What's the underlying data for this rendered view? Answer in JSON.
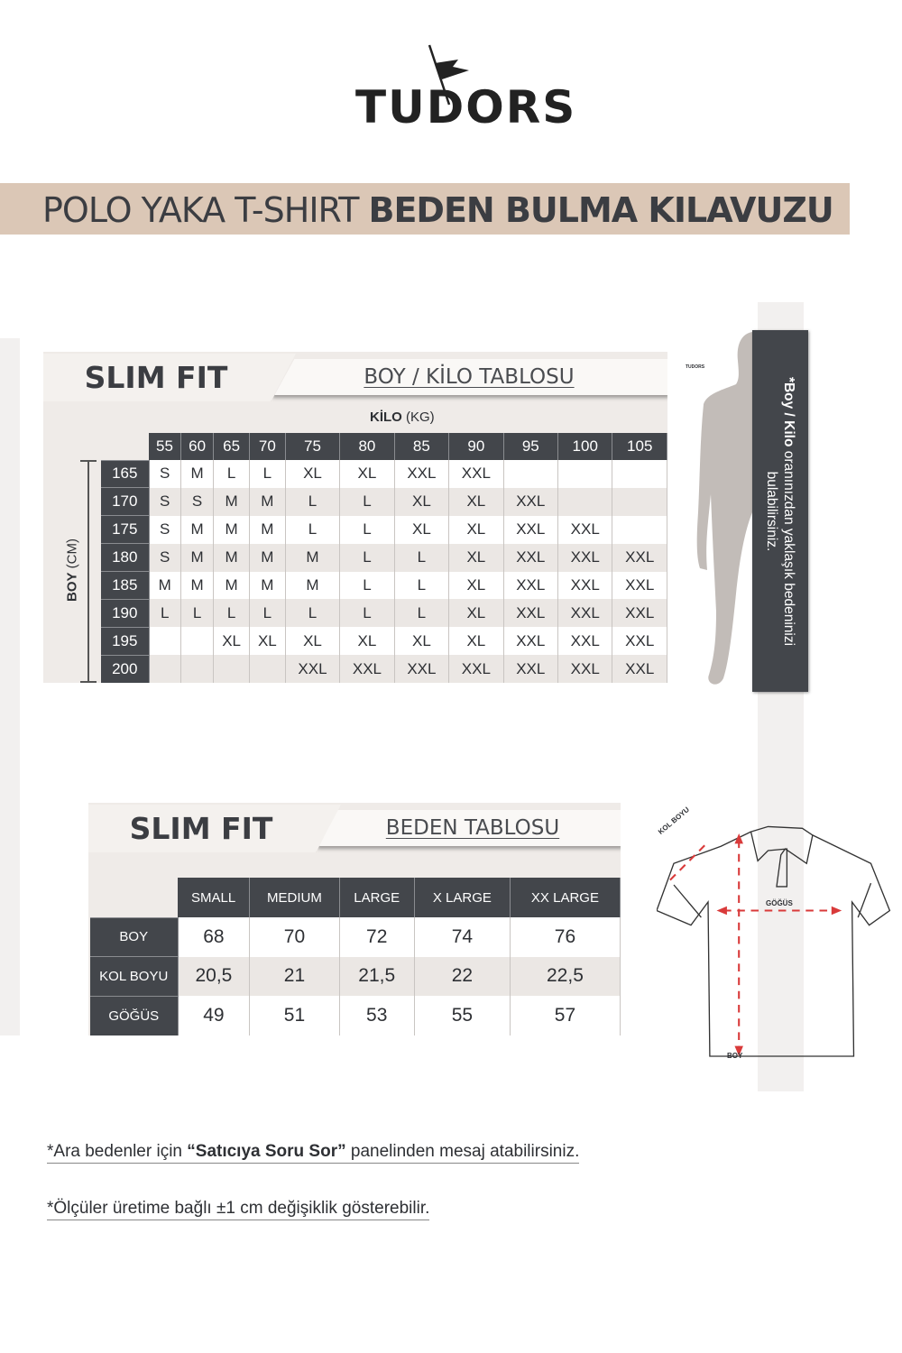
{
  "brand": {
    "logo_text": "TUDORS"
  },
  "banner": {
    "normal": "POLO YAKA T-SHIRT ",
    "bold": "BEDEN BULMA KILAVUZU"
  },
  "accent_colors": {
    "banner": "#dbc7b6",
    "dark": "#43464b",
    "panel": "#efebe8",
    "arrow": "#d93a3a"
  },
  "boy_kilo": {
    "tab_title": "SLIM FIT",
    "tab_subtitle": "BOY / KİLO TABLOSU",
    "kilo_label_bold": "KİLO",
    "kilo_label_unit": "(KG)",
    "boy_label_bold": "BOY",
    "boy_label_unit": "(CM)",
    "weights": [
      "55",
      "60",
      "65",
      "70",
      "75",
      "80",
      "85",
      "90",
      "95",
      "100",
      "105"
    ],
    "rows": [
      {
        "height": "165",
        "sizes": [
          "S",
          "M",
          "L",
          "L",
          "XL",
          "XL",
          "XXL",
          "XXL",
          "",
          "",
          ""
        ]
      },
      {
        "height": "170",
        "sizes": [
          "S",
          "S",
          "M",
          "M",
          "L",
          "L",
          "XL",
          "XL",
          "XXL",
          "",
          ""
        ]
      },
      {
        "height": "175",
        "sizes": [
          "S",
          "M",
          "M",
          "M",
          "L",
          "L",
          "XL",
          "XL",
          "XXL",
          "XXL",
          ""
        ]
      },
      {
        "height": "180",
        "sizes": [
          "S",
          "M",
          "M",
          "M",
          "M",
          "L",
          "L",
          "XL",
          "XXL",
          "XXL",
          "XXL"
        ]
      },
      {
        "height": "185",
        "sizes": [
          "M",
          "M",
          "M",
          "M",
          "M",
          "L",
          "L",
          "XL",
          "XXL",
          "XXL",
          "XXL"
        ]
      },
      {
        "height": "190",
        "sizes": [
          "L",
          "L",
          "L",
          "L",
          "L",
          "L",
          "L",
          "XL",
          "XXL",
          "XXL",
          "XXL"
        ]
      },
      {
        "height": "195",
        "sizes": [
          "",
          "",
          "XL",
          "XL",
          "XL",
          "XL",
          "XL",
          "XL",
          "XXL",
          "XXL",
          "XXL"
        ]
      },
      {
        "height": "200",
        "sizes": [
          "",
          "",
          "",
          "",
          "XXL",
          "XXL",
          "XXL",
          "XXL",
          "XXL",
          "XXL",
          "XXL"
        ]
      }
    ],
    "side_note_bold1": "*Boy / Kilo",
    "side_note_rest": " oranınızdan yaklaşık bedeninizi bulabilirsiniz.",
    "figure_logo": "TUDORS"
  },
  "beden": {
    "tab_title": "SLIM FIT",
    "tab_subtitle": "BEDEN TABLOSU",
    "sizes": [
      "SMALL",
      "MEDIUM",
      "LARGE",
      "X LARGE",
      "XX LARGE"
    ],
    "rows": [
      {
        "label": "BOY",
        "values": [
          "68",
          "70",
          "72",
          "74",
          "76"
        ]
      },
      {
        "label": "KOL BOYU",
        "values": [
          "20,5",
          "21",
          "21,5",
          "22",
          "22,5"
        ]
      },
      {
        "label": "GÖĞÜS",
        "values": [
          "49",
          "51",
          "53",
          "55",
          "57"
        ]
      }
    ],
    "diagram": {
      "kol_boyu": "KOL BOYU",
      "gogus": "GÖĞÜS",
      "boy": "BOY"
    }
  },
  "notes": {
    "note1_pre": "*Ara bedenler için ",
    "note1_bold": "“Satıcıya Soru Sor”",
    "note1_post": " panelinden mesaj atabilirsiniz.",
    "note2": "*Ölçüler üretime bağlı ±1 cm değişiklik gösterebilir."
  }
}
